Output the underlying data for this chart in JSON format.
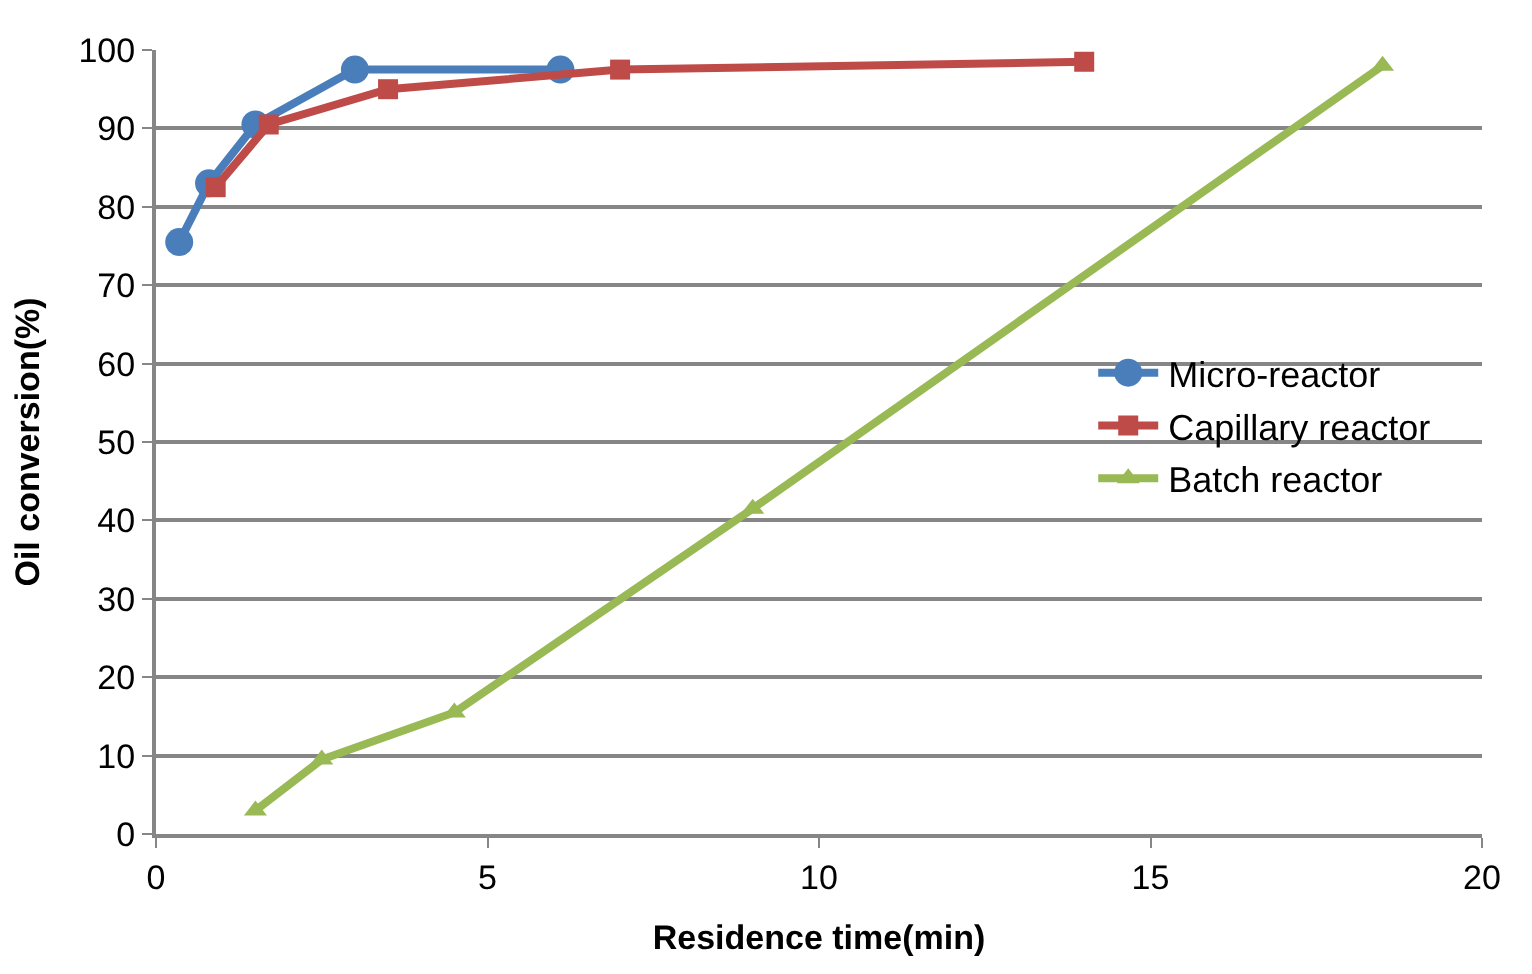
{
  "chart_data": {
    "type": "line",
    "xlabel": "Residence time(min)",
    "ylabel": "Oil conversion(%)",
    "xlim": [
      0,
      20
    ],
    "xticks": [
      0,
      5,
      10,
      15,
      20
    ],
    "ylim": [
      0,
      100
    ],
    "yticks": [
      0,
      10,
      20,
      30,
      40,
      50,
      60,
      70,
      80,
      90,
      100
    ],
    "grid": "y",
    "legend": "right",
    "series": [
      {
        "name": "Micro-reactor",
        "color": "#4a7ebb",
        "marker": "circle",
        "x": [
          0.35,
          0.8,
          1.5,
          3,
          6.1
        ],
        "values": [
          75.5,
          83,
          90.5,
          97.5,
          97.5
        ]
      },
      {
        "name": "Capillary reactor",
        "color": "#be4b48",
        "marker": "square",
        "x": [
          0.9,
          1.7,
          3.5,
          7,
          14
        ],
        "values": [
          82.5,
          90.5,
          95,
          97.5,
          98.5
        ]
      },
      {
        "name": "Batch reactor",
        "color": "#98b954",
        "marker": "triangle",
        "x": [
          1.5,
          2.5,
          4.5,
          9,
          18.5
        ],
        "values": [
          3,
          9.5,
          15.5,
          41.5,
          98
        ]
      }
    ]
  }
}
